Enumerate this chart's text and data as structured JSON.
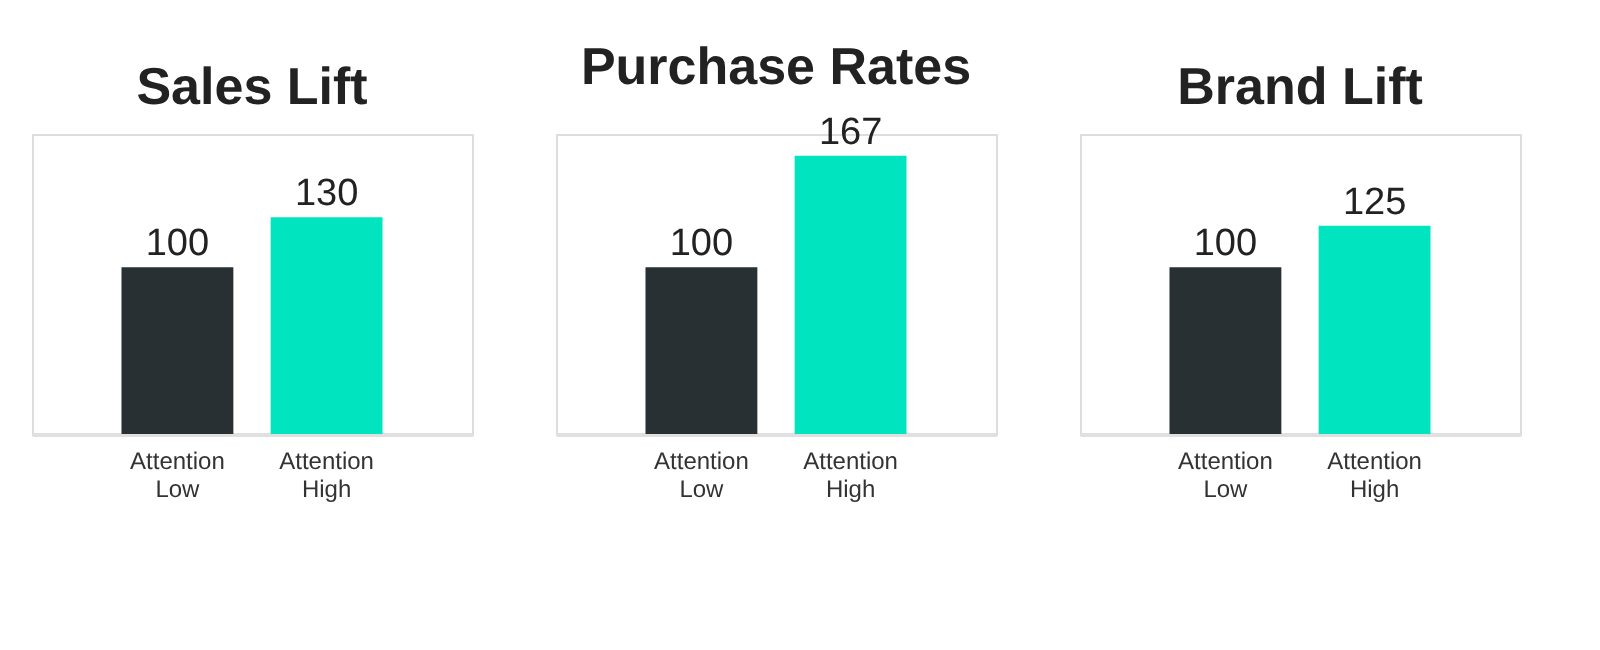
{
  "chart_data": [
    {
      "type": "bar",
      "title": "Sales Lift",
      "categories": [
        "Attention\nLow",
        "Attention\nHigh"
      ],
      "values": [
        100,
        130
      ],
      "colors": [
        "#283033",
        "#00e5bf"
      ],
      "ylim": [
        0,
        180
      ],
      "data_labels": true,
      "tick_labels": "x",
      "grid": false
    },
    {
      "type": "bar",
      "title": "Purchase Rates",
      "categories": [
        "Attention\nLow",
        "Attention\nHigh"
      ],
      "values": [
        100,
        167
      ],
      "colors": [
        "#283033",
        "#00e5bf"
      ],
      "ylim": [
        0,
        180
      ],
      "data_labels": true,
      "tick_labels": "x",
      "grid": false
    },
    {
      "type": "bar",
      "title": "Brand Lift",
      "categories": [
        "Attention\nLow",
        "Attention\nHigh"
      ],
      "values": [
        100,
        125
      ],
      "colors": [
        "#283033",
        "#00e5bf"
      ],
      "ylim": [
        0,
        180
      ],
      "data_labels": true,
      "tick_labels": "x",
      "grid": false
    }
  ]
}
